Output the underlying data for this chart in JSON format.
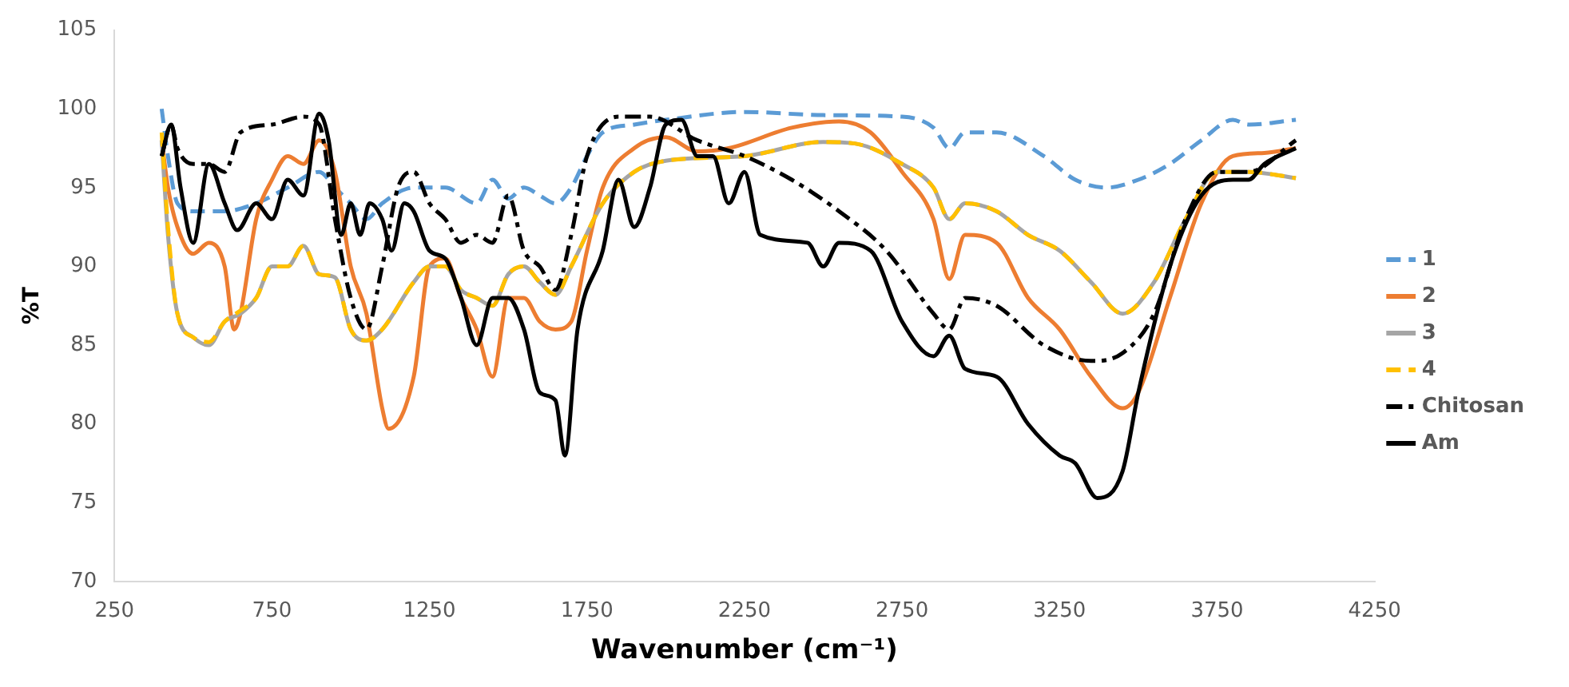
{
  "chart_data": {
    "type": "line",
    "xlabel": "Wavenumber (cm⁻¹)",
    "ylabel": "%T",
    "xlim": [
      250,
      4250
    ],
    "xticks": [
      250,
      750,
      1250,
      1750,
      2250,
      2750,
      3250,
      3750,
      4250
    ],
    "ylim": [
      70,
      105
    ],
    "yticks": [
      70,
      75,
      80,
      85,
      90,
      95,
      100,
      105
    ],
    "grid": false,
    "legend": "right",
    "marker": "none",
    "series": [
      {
        "name": "1",
        "color": "#5b9bd5",
        "line_style": "dashed",
        "x": [
          400,
          420,
          450,
          500,
          600,
          700,
          800,
          900,
          950,
          1000,
          1050,
          1100,
          1200,
          1300,
          1400,
          1450,
          1500,
          1550,
          1600,
          1650,
          1700,
          1750,
          1800,
          1900,
          2000,
          2250,
          2500,
          2750,
          2850,
          2900,
          2950,
          3050,
          3200,
          3300,
          3400,
          3500,
          3600,
          3700,
          3800,
          3850,
          4000
        ],
        "values": [
          100,
          97,
          94,
          93.5,
          93.5,
          94,
          95,
          96,
          95,
          94,
          93,
          94,
          95,
          95,
          94,
          95.5,
          94.3,
          95,
          94.5,
          94,
          95,
          97,
          98.5,
          99,
          99.3,
          99.8,
          99.6,
          99.5,
          98.8,
          97.5,
          98.5,
          98.5,
          97,
          95.5,
          95,
          95.5,
          96.5,
          98,
          99.3,
          99,
          99.3
        ]
      },
      {
        "name": "2",
        "color": "#ed7d31",
        "line_style": "solid",
        "x": [
          400,
          420,
          450,
          500,
          550,
          600,
          630,
          650,
          700,
          750,
          800,
          850,
          900,
          950,
          1000,
          1050,
          1100,
          1120,
          1200,
          1250,
          1300,
          1350,
          1400,
          1450,
          1500,
          1550,
          1600,
          1650,
          1700,
          1750,
          1800,
          1900,
          2000,
          2100,
          2200,
          2400,
          2550,
          2650,
          2750,
          2850,
          2900,
          2950,
          3050,
          3150,
          3250,
          3350,
          3450,
          3500,
          3600,
          3700,
          3800,
          3900,
          4000
        ],
        "values": [
          98,
          95,
          92.5,
          90.8,
          91.5,
          90,
          86,
          87,
          93,
          95.5,
          97,
          96.5,
          98,
          96,
          90,
          87,
          81,
          79.7,
          83,
          90,
          90.5,
          88,
          86,
          83,
          88,
          88,
          86.5,
          86,
          86.5,
          91,
          95,
          97.5,
          98.2,
          97.3,
          97.5,
          98.8,
          99.2,
          98.5,
          96,
          93,
          89.2,
          92,
          91.5,
          88,
          86,
          83,
          81,
          82,
          88,
          94,
          97,
          97.2,
          97.5
        ]
      },
      {
        "name": "3",
        "color": "#a5a5a5",
        "line_style": "solid",
        "x": [
          400,
          420,
          450,
          500,
          550,
          600,
          650,
          700,
          750,
          800,
          850,
          900,
          950,
          1000,
          1050,
          1100,
          1200,
          1250,
          1300,
          1350,
          1400,
          1450,
          1500,
          1550,
          1600,
          1650,
          1700,
          1800,
          1900,
          2000,
          2250,
          2500,
          2600,
          2750,
          2850,
          2900,
          2950,
          3050,
          3150,
          3250,
          3350,
          3450,
          3550,
          3650,
          3750,
          3850,
          4000
        ],
        "values": [
          98,
          92,
          87,
          85.5,
          85,
          86.5,
          87,
          88,
          90,
          90,
          91.3,
          89.5,
          89.3,
          86,
          85.3,
          86,
          89,
          90,
          90,
          88.5,
          88,
          87.5,
          89.5,
          90,
          89,
          88.2,
          90,
          94,
          96,
          96.7,
          97,
          97.9,
          97.8,
          96.5,
          95,
          93,
          94,
          93.5,
          92,
          91,
          89,
          87,
          89,
          93,
          96,
          96,
          95.6
        ]
      },
      {
        "name": "4",
        "color": "#ffc000",
        "line_style": "dashed",
        "x": [
          400,
          420,
          450,
          500,
          550,
          600,
          650,
          700,
          750,
          800,
          850,
          900,
          950,
          1000,
          1050,
          1100,
          1200,
          1250,
          1300,
          1350,
          1400,
          1450,
          1500,
          1550,
          1600,
          1650,
          1700,
          1800,
          1900,
          2000,
          2250,
          2500,
          2600,
          2750,
          2850,
          2900,
          2950,
          3050,
          3150,
          3250,
          3350,
          3450,
          3550,
          3650,
          3750,
          3850,
          4000
        ],
        "values": [
          98.5,
          92.5,
          87,
          85.5,
          85.2,
          86.5,
          87.2,
          88,
          90,
          90,
          91.3,
          89.5,
          89.3,
          86,
          85.3,
          86,
          89,
          90,
          90,
          88.5,
          88,
          87.5,
          89.5,
          90,
          89,
          88.2,
          90,
          94,
          96,
          96.7,
          97,
          97.9,
          97.8,
          96.5,
          95,
          93,
          94,
          93.5,
          92,
          91,
          89,
          87,
          89,
          93,
          96,
          96,
          95.6
        ]
      },
      {
        "name": "Chitosan",
        "color": "#000000",
        "line_style": "dashdot",
        "x": [
          400,
          430,
          450,
          500,
          550,
          600,
          650,
          750,
          850,
          900,
          950,
          1000,
          1050,
          1100,
          1150,
          1200,
          1250,
          1300,
          1350,
          1400,
          1450,
          1500,
          1550,
          1600,
          1650,
          1700,
          1750,
          1850,
          1950,
          2100,
          2250,
          2400,
          2550,
          2700,
          2850,
          2900,
          2950,
          3050,
          3200,
          3350,
          3450,
          3550,
          3650,
          3750,
          3850,
          4000
        ],
        "values": [
          97,
          99,
          97.5,
          96.5,
          96.5,
          96,
          98.5,
          99,
          99.5,
          99,
          93,
          88,
          86,
          90,
          95,
          96,
          94,
          93,
          91.5,
          92,
          91.5,
          94.5,
          91,
          90,
          88.5,
          92,
          97,
          99.5,
          99.5,
          98,
          97,
          95.5,
          93.5,
          91,
          87,
          86,
          88,
          87.5,
          85,
          84,
          84.5,
          87,
          93,
          96,
          96,
          98
        ]
      },
      {
        "name": "Am",
        "color": "#000000",
        "line_style": "solid",
        "x": [
          400,
          430,
          460,
          500,
          550,
          600,
          640,
          700,
          750,
          800,
          850,
          900,
          930,
          970,
          1000,
          1030,
          1060,
          1100,
          1130,
          1170,
          1200,
          1250,
          1300,
          1350,
          1400,
          1450,
          1500,
          1550,
          1600,
          1650,
          1680,
          1720,
          1800,
          1850,
          1900,
          1950,
          2000,
          2050,
          2100,
          2150,
          2200,
          2250,
          2300,
          2450,
          2500,
          2550,
          2650,
          2750,
          2850,
          2900,
          2950,
          3050,
          3150,
          3250,
          3300,
          3370,
          3450,
          3500,
          3600,
          3700,
          3800,
          3850,
          3900,
          4000
        ],
        "values": [
          97,
          99,
          95,
          91.5,
          96.5,
          94,
          92.3,
          94,
          93,
          95.5,
          94.5,
          99.7,
          98,
          92,
          94,
          92,
          94,
          93,
          91,
          94,
          93.5,
          91,
          90.5,
          88,
          85,
          88,
          88,
          86,
          82,
          81.5,
          78,
          86,
          91,
          95.5,
          92.5,
          95,
          99,
          99.3,
          97,
          97,
          94,
          96,
          92,
          91.5,
          90,
          91.5,
          91,
          86.5,
          84.3,
          85.6,
          83.5,
          83,
          80,
          78,
          77.5,
          75.3,
          77,
          82,
          90,
          94.5,
          95.5,
          95.5,
          96.5,
          97.5
        ]
      }
    ]
  }
}
